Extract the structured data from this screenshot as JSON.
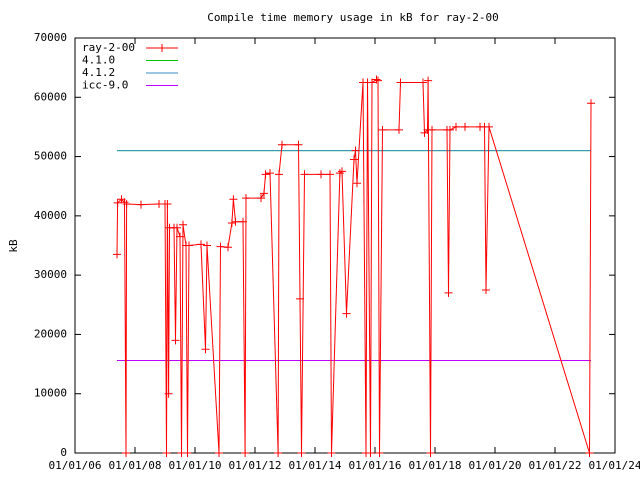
{
  "chart_data": {
    "type": "line",
    "title": "Compile time memory usage in kB for ray-2-00",
    "y_label": "kB",
    "xlim": [
      2006,
      2024
    ],
    "xticks": [
      {
        "value": 2006,
        "label": "01/01/06"
      },
      {
        "value": 2008,
        "label": "01/01/08"
      },
      {
        "value": 2010,
        "label": "01/01/10"
      },
      {
        "value": 2012,
        "label": "01/01/12"
      },
      {
        "value": 2014,
        "label": "01/01/14"
      },
      {
        "value": 2016,
        "label": "01/01/16"
      },
      {
        "value": 2018,
        "label": "01/01/18"
      },
      {
        "value": 2020,
        "label": "01/01/20"
      },
      {
        "value": 2022,
        "label": "01/01/22"
      },
      {
        "value": 2024,
        "label": "01/01/24"
      }
    ],
    "ylim": [
      0,
      70000
    ],
    "yticks": [
      0,
      10000,
      20000,
      30000,
      40000,
      50000,
      60000,
      70000
    ],
    "grid": false,
    "legend": "top-left",
    "series": [
      {
        "name": "ray-2-00",
        "color": "#ff0000",
        "markers": true,
        "x": [
          2007.4,
          2007.42,
          2007.55,
          2007.65,
          2007.7,
          2007.72,
          2008.2,
          2008.8,
          2009.0,
          2009.05,
          2009.08,
          2009.12,
          2009.15,
          2009.3,
          2009.35,
          2009.4,
          2009.5,
          2009.55,
          2009.6,
          2009.7,
          2009.75,
          2009.8,
          2010.2,
          2010.35,
          2010.4,
          2010.8,
          2010.85,
          2011.1,
          2011.23,
          2011.28,
          2011.35,
          2011.6,
          2011.67,
          2011.7,
          2012.2,
          2012.3,
          2012.35,
          2012.5,
          2012.77,
          2012.8,
          2012.9,
          2013.45,
          2013.5,
          2013.55,
          2013.65,
          2014.2,
          2014.5,
          2014.55,
          2014.83,
          2014.9,
          2015.05,
          2015.3,
          2015.35,
          2015.4,
          2015.6,
          2015.7,
          2015.75,
          2015.85,
          2015.9,
          2016.05,
          2016.1,
          2016.15,
          2016.25,
          2016.8,
          2016.85,
          2017.6,
          2017.65,
          2017.75,
          2017.77,
          2017.85,
          2017.9,
          2018.4,
          2018.45,
          2018.5,
          2018.7,
          2019.0,
          2019.5,
          2019.65,
          2019.7,
          2019.8,
          2023.15,
          2023.2
        ],
        "values": [
          33500,
          42200,
          42800,
          42300,
          0,
          42000,
          41900,
          42000,
          42000,
          0,
          42000,
          10000,
          38000,
          38000,
          19000,
          38000,
          36500,
          0,
          38500,
          35000,
          0,
          35000,
          35200,
          17500,
          35000,
          0,
          34800,
          34700,
          38800,
          42800,
          39000,
          39000,
          0,
          43000,
          43000,
          43800,
          47000,
          47200,
          0,
          47000,
          52000,
          52000,
          26000,
          0,
          47000,
          47000,
          47000,
          0,
          47200,
          47500,
          23500,
          49500,
          51000,
          45500,
          62500,
          0,
          62500,
          0,
          62500,
          63000,
          62800,
          0,
          54500,
          54500,
          62500,
          62500,
          54000,
          54500,
          62800,
          0,
          54500,
          54500,
          27000,
          54500,
          55000,
          55000,
          55000,
          55000,
          27500,
          55000,
          0,
          59000
        ]
      },
      {
        "name": "4.1.0",
        "color": "#00c000",
        "x": [
          2007.4,
          2023.2
        ],
        "values": [
          51000,
          51000
        ]
      },
      {
        "name": "4.1.2",
        "color": "#3a8fc8",
        "x": [
          2007.4,
          2023.2
        ],
        "values": [
          51000,
          51000
        ]
      },
      {
        "name": "icc-9.0",
        "color": "#c000ff",
        "x": [
          2007.4,
          2023.2
        ],
        "values": [
          15600,
          15600
        ]
      }
    ]
  }
}
